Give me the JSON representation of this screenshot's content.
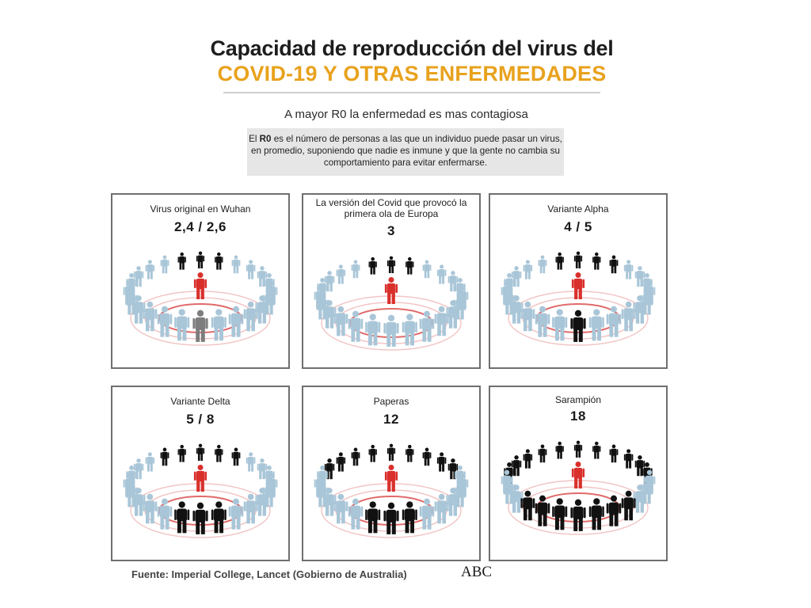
{
  "title": {
    "line1": "Capacidad de reproducción del virus del",
    "line2": "COVID-19 Y OTRAS ENFERMEDADES"
  },
  "subtitle": "A mayor R0 la enfermedad es mas contagiosa",
  "definition": {
    "term": "R0",
    "before": "El ",
    "after": " es el número de personas a las que un individuo puede pasar un virus, en promedio, suponiendo que nadie es inmune y que la gente no cambia su comportamiento para evitar enfermarse."
  },
  "colors": {
    "infected": "#d9302c",
    "contagiado": "#111111",
    "posible": "#7d7d7d",
    "healthy": "#a9c6d8",
    "ring": "#e06a6a",
    "title_accent": "#e8a21d"
  },
  "panels": [
    {
      "id": "wuhan",
      "label": "Virus original en Wuhan",
      "value": "2,4  / 2,6",
      "black": 3,
      "gray": 1
    },
    {
      "id": "europa",
      "label": "La versión del Covid que provocó la primera ola de Europa",
      "value": "3",
      "black": 3,
      "gray": 0
    },
    {
      "id": "alpha",
      "label": "Variante Alpha",
      "value": "4  / 5",
      "black": 5,
      "gray": 0
    },
    {
      "id": "delta",
      "label": "Variante Delta",
      "value": "5  / 8",
      "black": 8,
      "gray": 0
    },
    {
      "id": "paperas",
      "label": "Paperas",
      "value": "12",
      "black": 12,
      "gray": 0
    },
    {
      "id": "sarampion",
      "label": "Sarampión",
      "value": "18",
      "black": 18,
      "gray": 0
    }
  ],
  "source": "Fuente: Imperial College, Lancet (Gobierno de Australia)",
  "logo": "ABC"
}
